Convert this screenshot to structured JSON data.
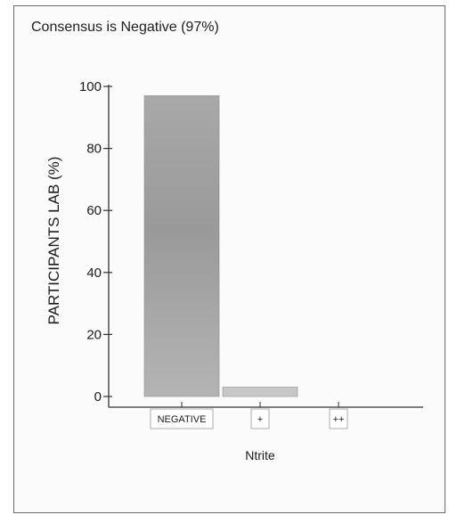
{
  "chart_data": {
    "type": "bar",
    "title": "Consensus is Negative (97%)",
    "ylabel": "PARTICIPANTS LAB (%)",
    "xlabel": "Ntrite",
    "categories": [
      "NEGATIVE",
      "+",
      "++"
    ],
    "values": [
      97,
      3,
      0
    ],
    "yticks": [
      "0",
      "20",
      "40",
      "60",
      "80",
      "100"
    ],
    "ylim": [
      0,
      100
    ],
    "grid": false,
    "colors": {
      "bar_main": "#9c9c9c",
      "bar_light": "#c8c8c8",
      "axis": "#333333"
    }
  }
}
